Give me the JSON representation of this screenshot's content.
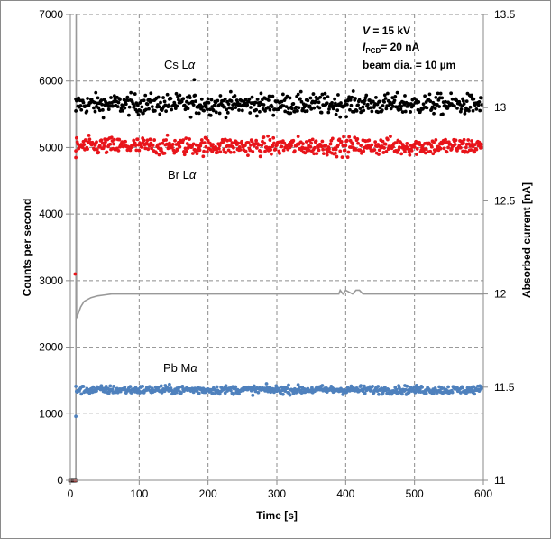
{
  "chart_data": {
    "type": "scatter",
    "title": "",
    "xlabel": "Time [s]",
    "ylabel": "Counts per second",
    "y2label": "Absorbed current [nA]",
    "xlim": [
      0,
      600
    ],
    "ylim": [
      0,
      7000
    ],
    "y2lim": [
      11,
      13.5
    ],
    "x_ticks": [
      0,
      100,
      200,
      300,
      400,
      500,
      600
    ],
    "y_ticks": [
      0,
      1000,
      2000,
      3000,
      4000,
      5000,
      6000,
      7000
    ],
    "y2_ticks": [
      11,
      11.5,
      12,
      12.5,
      13,
      13.5
    ],
    "grid": true,
    "annotation": {
      "voltage_var": "V",
      "voltage_text": " = 15 kV",
      "current_var": "I",
      "current_sub": "PCD",
      "current_text": "= 20 nA",
      "beam_text": "beam dia. = 10 µm"
    },
    "series": [
      {
        "name": "Cs Lα",
        "label_el": "Cs L",
        "label_greek": "α",
        "color": "#000000",
        "mean": 5650,
        "spread": 110,
        "x_range": [
          8,
          598
        ],
        "outliers": [
          [
            8,
            5550
          ],
          [
            180,
            6020
          ]
        ]
      },
      {
        "name": "Br Lα",
        "label_el": "Br L",
        "label_greek": "α",
        "color": "#e8141a",
        "mean": 5020,
        "spread": 95,
        "x_range": [
          8,
          598
        ],
        "outliers": [
          [
            7,
            3100
          ],
          [
            8,
            4850
          ]
        ]
      },
      {
        "name": "Pb Mα",
        "label_el": "Pb M",
        "label_greek": "α",
        "color": "#4f81bd",
        "mean": 1360,
        "spread": 45,
        "x_range": [
          8,
          598
        ],
        "outliers": [
          [
            8,
            960
          ]
        ]
      },
      {
        "name": "Absorbed current",
        "axis": "right",
        "color": "#999999",
        "type": "line",
        "points": [
          [
            5,
            11.0
          ],
          [
            8,
            11.0
          ],
          [
            8.5,
            13.5
          ],
          [
            9,
            11.9
          ],
          [
            10,
            11.88
          ],
          [
            15,
            11.93
          ],
          [
            20,
            11.96
          ],
          [
            30,
            11.98
          ],
          [
            40,
            11.99
          ],
          [
            50,
            11.995
          ],
          [
            60,
            12.0
          ],
          [
            100,
            12.0
          ],
          [
            200,
            12.0
          ],
          [
            300,
            12.0
          ],
          [
            390,
            12.0
          ],
          [
            392,
            12.02
          ],
          [
            396,
            12.0
          ],
          [
            400,
            12.02
          ],
          [
            410,
            12.0
          ],
          [
            415,
            12.02
          ],
          [
            420,
            12.02
          ],
          [
            425,
            12.0
          ],
          [
            600,
            12.0
          ]
        ]
      }
    ],
    "zero_markers": {
      "color": "#c0504d",
      "x": [
        0,
        1,
        2,
        3,
        4,
        5,
        6,
        7
      ],
      "y": 0
    }
  }
}
